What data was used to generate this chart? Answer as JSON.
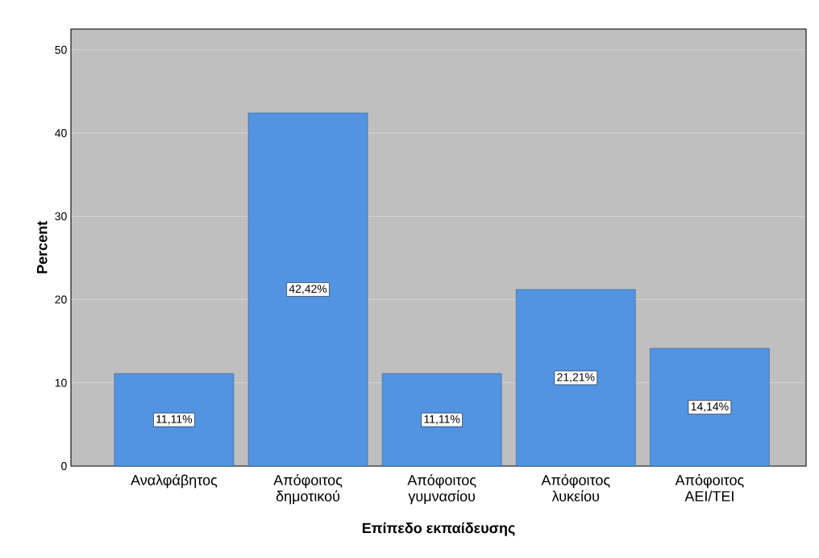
{
  "chart_data": {
    "type": "bar",
    "xlabel": "Επίπεδο εκπαίδευσης",
    "ylabel": "Percent",
    "categories": [
      "Αναλφάβητος",
      "Απόφοιτος δημοτικού",
      "Απόφοιτος γυμνασίου",
      "Απόφοιτος λυκείου",
      "Απόφοιτος ΑΕΙ/ΤΕΙ"
    ],
    "values": [
      11.11,
      42.42,
      11.11,
      21.21,
      14.14
    ],
    "value_labels": [
      "11,11%",
      "42,42%",
      "11,11%",
      "21,21%",
      "14,14%"
    ],
    "color": "#5294e2",
    "ylim": [
      0,
      52.5
    ],
    "yticks": [
      0,
      10,
      20,
      30,
      40,
      50
    ],
    "grid": "y"
  }
}
